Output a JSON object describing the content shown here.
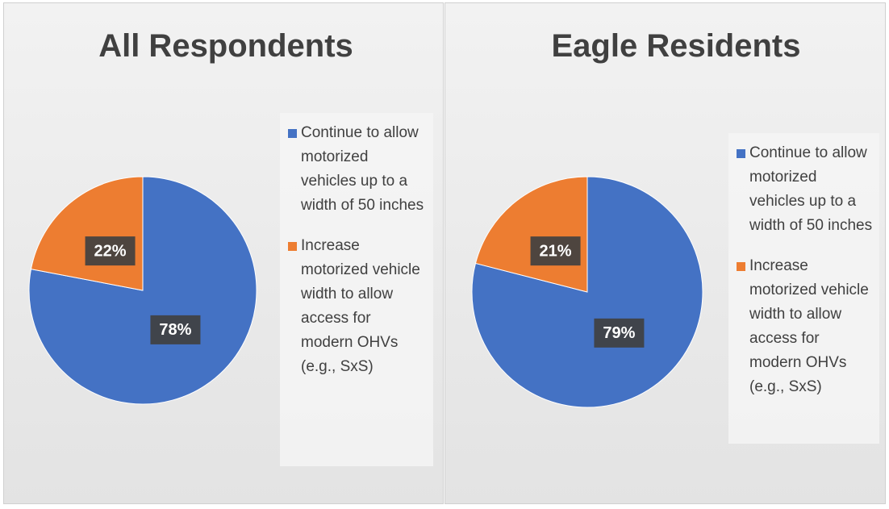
{
  "chart_data": [
    {
      "type": "pie",
      "title": "All Respondents",
      "categories": [
        "Continue to allow motorized vehicles up to a width of 50 inches",
        "Increase motorized vehicle width to allow access for modern OHVs (e.g., SxS)"
      ],
      "values": [
        78,
        22
      ],
      "value_labels": [
        "78%",
        "22%"
      ],
      "colors": [
        "#4472c4",
        "#ed7d31"
      ]
    },
    {
      "type": "pie",
      "title": "Eagle Residents",
      "categories": [
        "Continue to allow motorized vehicles up to a width of 50 inches",
        "Increase motorized vehicle width to allow access for modern OHVs (e.g., SxS)"
      ],
      "values": [
        79,
        21
      ],
      "value_labels": [
        "79%",
        "21%"
      ],
      "colors": [
        "#4472c4",
        "#ed7d31"
      ]
    }
  ]
}
